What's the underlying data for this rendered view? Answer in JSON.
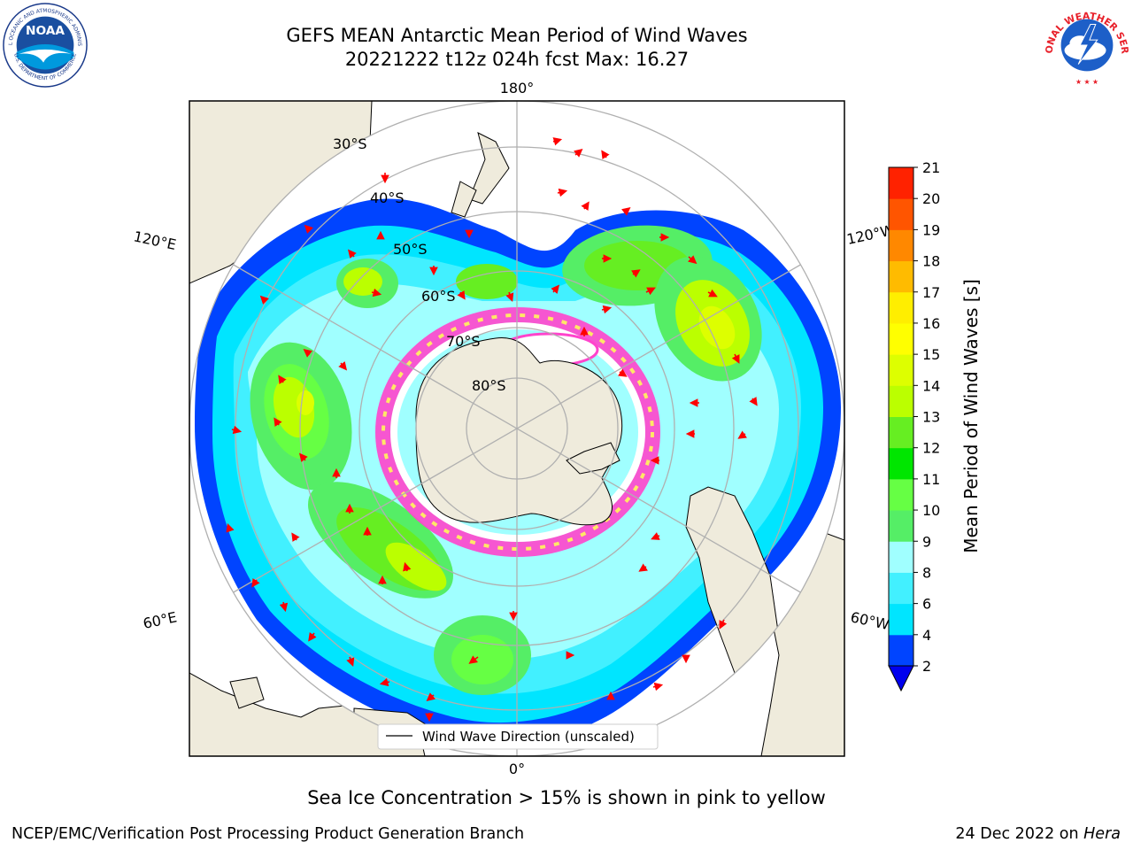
{
  "title": {
    "line1": "GEFS MEAN Antarctic Mean Period of Wind Waves",
    "line2": "20221222 t12z 024h fcst   Max: 16.27"
  },
  "logos": {
    "left": {
      "text": "NOAA",
      "ring_top": "NATIONAL OCEANIC AND ATMOSPHERIC ADMINISTRATION",
      "ring_bottom": "U.S. DEPARTMENT OF COMMERCE"
    },
    "right": {
      "ring": "NATIONAL WEATHER SERVICE"
    }
  },
  "map": {
    "projection": "south-polar-stereographic",
    "longitude_labels": [
      "180°",
      "120°E",
      "120°W",
      "60°E",
      "60°W",
      "0°"
    ],
    "latitude_labels": [
      "30°S",
      "40°S",
      "50°S",
      "60°S",
      "70°S",
      "80°S"
    ],
    "legend_label": "Wind Wave Direction (unscaled)"
  },
  "colorbar": {
    "label": "Mean Period of Wind Waves [s]",
    "ticks": [
      "21",
      "20",
      "19",
      "18",
      "17",
      "16",
      "15",
      "14",
      "13",
      "12",
      "11",
      "10",
      "9",
      "8",
      "6",
      "4",
      "2"
    ],
    "levels": [
      2,
      4,
      6,
      8,
      9,
      10,
      11,
      12,
      13,
      14,
      15,
      16,
      17,
      18,
      19,
      20,
      21
    ],
    "colors": [
      "#0044ff",
      "#00e5ff",
      "#42f0ff",
      "#a0ffff",
      "#55ee66",
      "#66ff44",
      "#00e600",
      "#66ee22",
      "#bbff00",
      "#ddff00",
      "#ffff00",
      "#ffee00",
      "#ffbb00",
      "#ff8800",
      "#ff5500",
      "#ff2200"
    ],
    "extend_color": "#0000ee"
  },
  "colors": {
    "land": "#efebdc",
    "ice_pink": "#ff44cc",
    "ice_yellow": "#ffe866",
    "arrow": "#ff0000",
    "grid": "#b0b0b0"
  },
  "note": "Sea Ice Concentration > 15% is shown in pink to yellow",
  "footer": {
    "left": "NCEP/EMC/Verification Post Processing Product Generation Branch",
    "right_prefix": "24 Dec 2022 on ",
    "right_machine": "Hera"
  }
}
